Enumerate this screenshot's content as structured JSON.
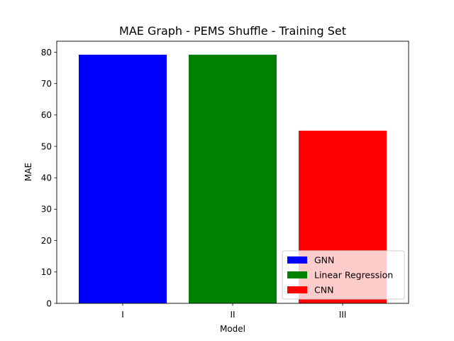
{
  "chart_data": {
    "type": "bar",
    "title": "MAE Graph - PEMS Shuffle - Training Set",
    "xlabel": "Model",
    "ylabel": "MAE",
    "categories": [
      "I",
      "II",
      "III"
    ],
    "values": [
      79.2,
      79.2,
      55.0
    ],
    "colors": [
      "#0000ff",
      "#008000",
      "#ff0000"
    ],
    "ylim": [
      0,
      83.5
    ],
    "yticks": [
      0,
      10,
      20,
      30,
      40,
      50,
      60,
      70,
      80
    ],
    "grid": false,
    "legend": {
      "placement": "lower-right",
      "entries": [
        {
          "label": "GNN",
          "color": "#0000ff"
        },
        {
          "label": "Linear Regression",
          "color": "#008000"
        },
        {
          "label": "CNN",
          "color": "#ff0000"
        }
      ]
    }
  }
}
